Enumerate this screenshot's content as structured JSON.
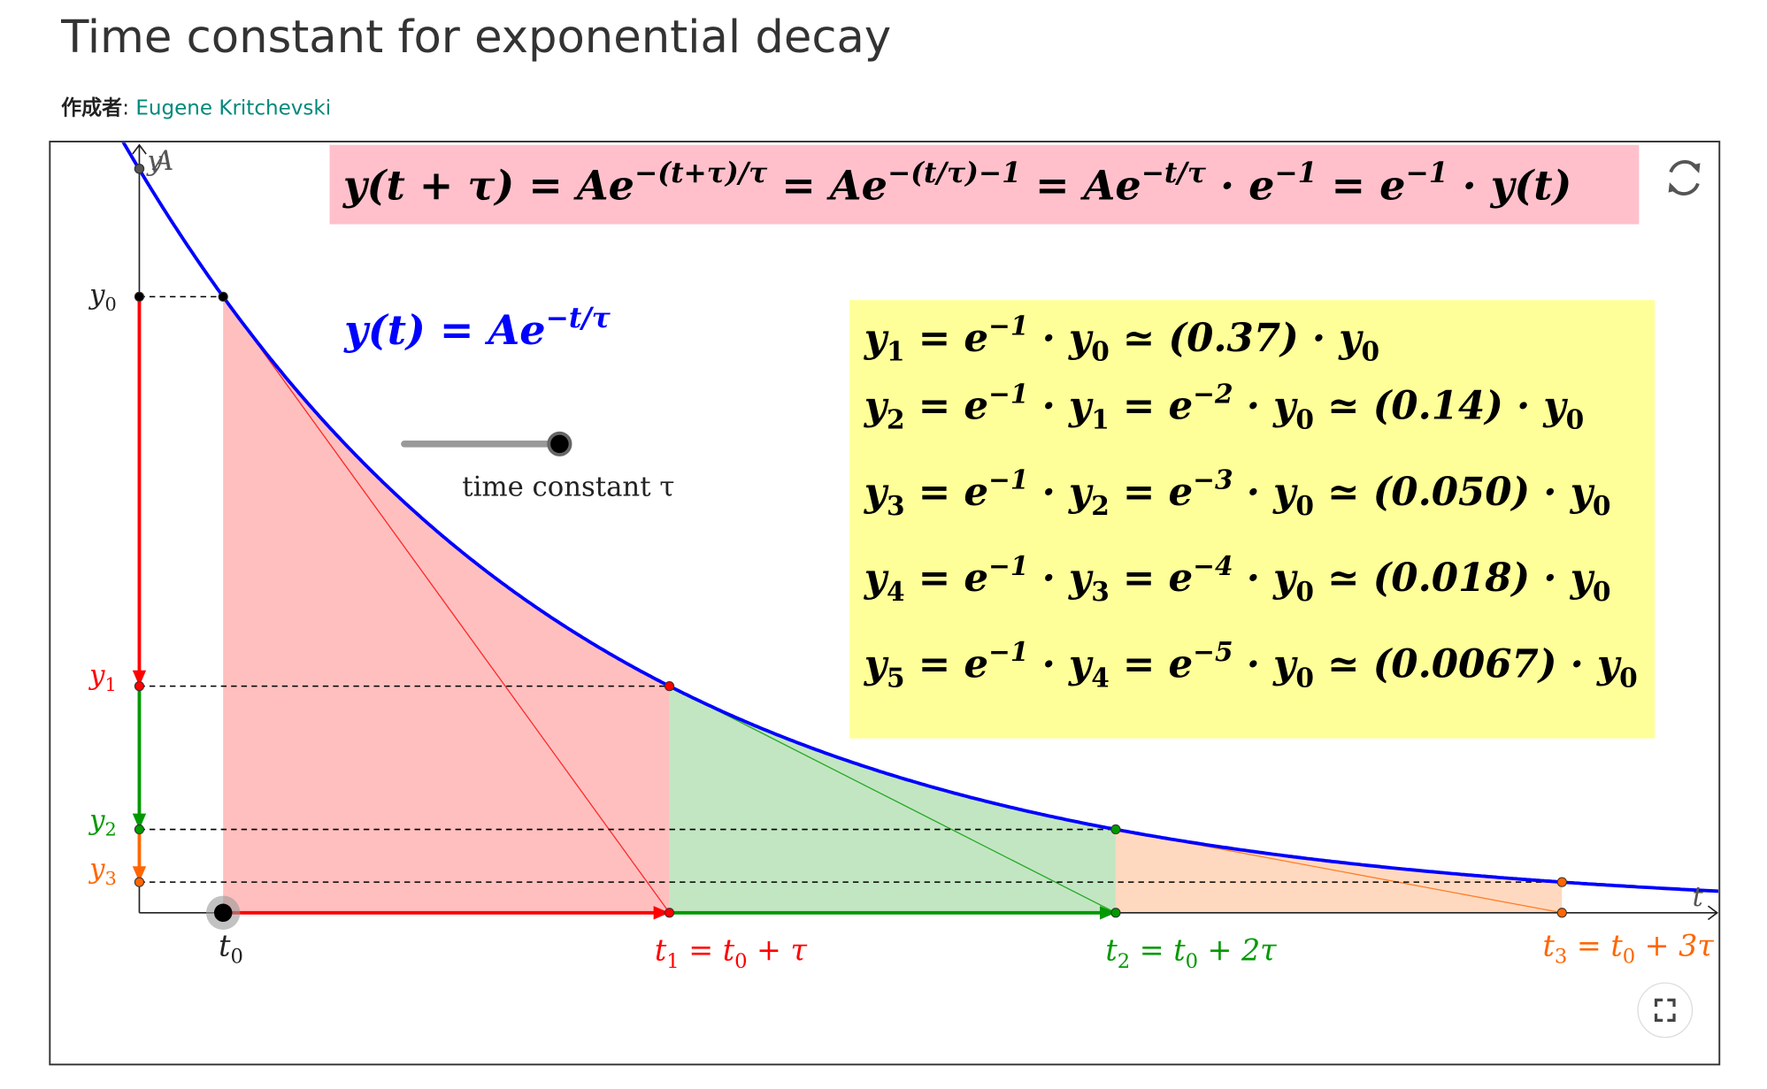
{
  "header": {
    "title": "Time constant for exponential decay",
    "author_label": "作成者",
    "author_name": "Eugene Kritchevski"
  },
  "applet": {
    "top_formula": [
      {
        "text": "y(t + τ) = Ae"
      },
      {
        "text": "−(t+τ)/τ",
        "style": "sup"
      },
      {
        "text": " = Ae"
      },
      {
        "text": "−(t/τ)−1",
        "style": "sup"
      },
      {
        "text": " = Ae"
      },
      {
        "text": "−t/τ",
        "style": "sup"
      },
      {
        "text": " · e"
      },
      {
        "text": "−1",
        "style": "sup"
      },
      {
        "text": " = e"
      },
      {
        "text": "−1",
        "style": "sup"
      },
      {
        "text": " · y(t)"
      }
    ],
    "curve_formula": [
      {
        "text": "y(t) = Ae"
      },
      {
        "text": "−t/τ",
        "style": "sup"
      }
    ],
    "slider_label": "time constant τ",
    "y_axis_label": "y",
    "y_axis_point_label": "A",
    "x_axis_label": "t",
    "lines": [
      [
        {
          "text": "y"
        },
        {
          "text": "1",
          "style": "sub"
        },
        {
          "text": " = e"
        },
        {
          "text": "−1",
          "style": "sup"
        },
        {
          "text": " · y"
        },
        {
          "text": "0",
          "style": "sub"
        },
        {
          "text": " ≃ (0.37) · y"
        },
        {
          "text": "0",
          "style": "sub"
        }
      ],
      [
        {
          "text": "y"
        },
        {
          "text": "2",
          "style": "sub"
        },
        {
          "text": " = e"
        },
        {
          "text": "−1",
          "style": "sup"
        },
        {
          "text": " · y"
        },
        {
          "text": "1",
          "style": "sub"
        },
        {
          "text": " = e"
        },
        {
          "text": "−2",
          "style": "sup"
        },
        {
          "text": " · y"
        },
        {
          "text": "0",
          "style": "sub"
        },
        {
          "text": " ≃ (0.14) · y"
        },
        {
          "text": "0",
          "style": "sub"
        }
      ],
      [
        {
          "text": "y"
        },
        {
          "text": "3",
          "style": "sub"
        },
        {
          "text": " = e"
        },
        {
          "text": "−1",
          "style": "sup"
        },
        {
          "text": " · y"
        },
        {
          "text": "2",
          "style": "sub"
        },
        {
          "text": " = e"
        },
        {
          "text": "−3",
          "style": "sup"
        },
        {
          "text": " · y"
        },
        {
          "text": "0",
          "style": "sub"
        },
        {
          "text": " ≃ (0.050) · y"
        },
        {
          "text": "0",
          "style": "sub"
        }
      ],
      [
        {
          "text": "y"
        },
        {
          "text": "4",
          "style": "sub"
        },
        {
          "text": " = e"
        },
        {
          "text": "−1",
          "style": "sup"
        },
        {
          "text": " · y"
        },
        {
          "text": "3",
          "style": "sub"
        },
        {
          "text": " = e"
        },
        {
          "text": "−4",
          "style": "sup"
        },
        {
          "text": " · y"
        },
        {
          "text": "0",
          "style": "sub"
        },
        {
          "text": " ≃ (0.018) · y"
        },
        {
          "text": "0",
          "style": "sub"
        }
      ],
      [
        {
          "text": "y"
        },
        {
          "text": "5",
          "style": "sub"
        },
        {
          "text": " = e"
        },
        {
          "text": "−1",
          "style": "sup"
        },
        {
          "text": " · y"
        },
        {
          "text": "4",
          "style": "sub"
        },
        {
          "text": " = e"
        },
        {
          "text": "−5",
          "style": "sup"
        },
        {
          "text": " · y"
        },
        {
          "text": "0",
          "style": "sub"
        },
        {
          "text": " ≃ (0.0067) · y"
        },
        {
          "text": "0",
          "style": "sub"
        }
      ]
    ],
    "y_labels": [
      [
        {
          "text": "y"
        },
        {
          "text": "0",
          "style": "sub"
        }
      ],
      [
        {
          "text": "y"
        },
        {
          "text": "1",
          "style": "sub"
        }
      ],
      [
        {
          "text": "y"
        },
        {
          "text": "2",
          "style": "sub"
        }
      ],
      [
        {
          "text": "y"
        },
        {
          "text": "3",
          "style": "sub"
        }
      ]
    ],
    "t_labels": [
      [
        {
          "text": "t"
        },
        {
          "text": "0",
          "style": "sub"
        }
      ],
      [
        {
          "text": "t"
        },
        {
          "text": "1",
          "style": "sub"
        },
        {
          "text": " = t"
        },
        {
          "text": "0",
          "style": "sub"
        },
        {
          "text": " + τ"
        }
      ],
      [
        {
          "text": "t"
        },
        {
          "text": "2",
          "style": "sub"
        },
        {
          "text": " = t"
        },
        {
          "text": "0",
          "style": "sub"
        },
        {
          "text": " + 2τ"
        }
      ],
      [
        {
          "text": "t"
        },
        {
          "text": "3",
          "style": "sub"
        },
        {
          "text": " = t"
        },
        {
          "text": "0",
          "style": "sub"
        },
        {
          "text": " + 3τ"
        }
      ]
    ]
  }
}
